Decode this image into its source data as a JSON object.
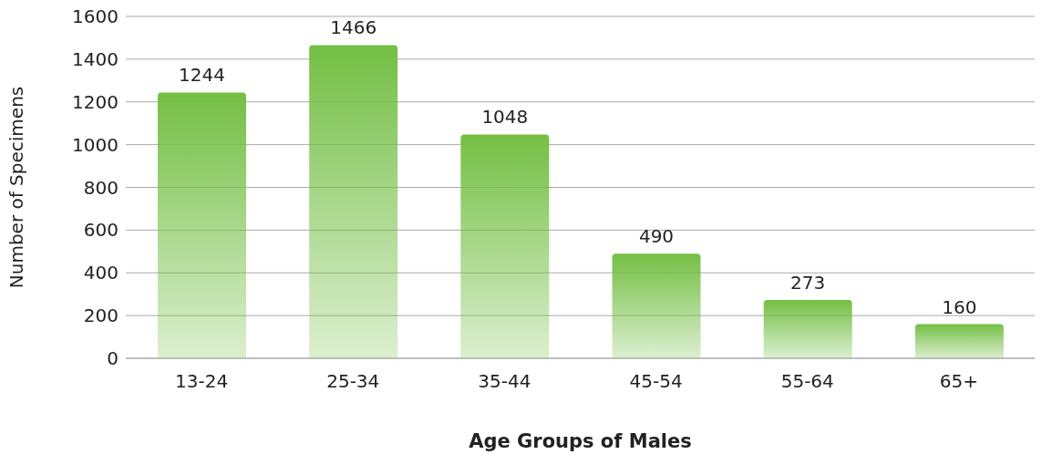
{
  "chart_data": {
    "type": "bar",
    "xlabel": "Age Groups of Males",
    "ylabel": "Number of Specimens",
    "categories": [
      "13-24",
      "25-34",
      "35-44",
      "45-54",
      "55-64",
      "65+"
    ],
    "values": [
      1244,
      1466,
      1048,
      490,
      273,
      160
    ],
    "color": "#74bf44",
    "ylim": [
      0,
      1600
    ],
    "yticks": [
      0,
      200,
      400,
      600,
      800,
      1000,
      1200,
      1400,
      1600
    ],
    "grid": "y",
    "data_labels": true
  }
}
